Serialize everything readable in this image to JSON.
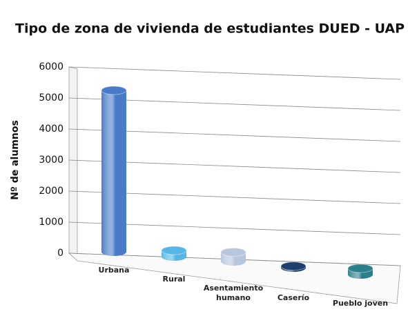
{
  "chart_data": {
    "type": "bar3d",
    "title": "Tipo de zona de vivienda de estudiantes DUED - UAP",
    "y_label": "Nº de alumnos",
    "categories": [
      "Urbana",
      "Rural",
      "Asentamiento humano",
      "Caserío",
      "Pueblo joven"
    ],
    "values": [
      5200,
      200,
      300,
      50,
      200
    ],
    "colors": [
      "#4a7bc8",
      "#56b7e6",
      "#b8c8dc",
      "#1f3f6b",
      "#2a7f8c"
    ],
    "ylim": [
      0,
      6000
    ],
    "yticks": [
      0,
      1000,
      2000,
      3000,
      4000,
      5000,
      6000
    ],
    "grid": true
  }
}
